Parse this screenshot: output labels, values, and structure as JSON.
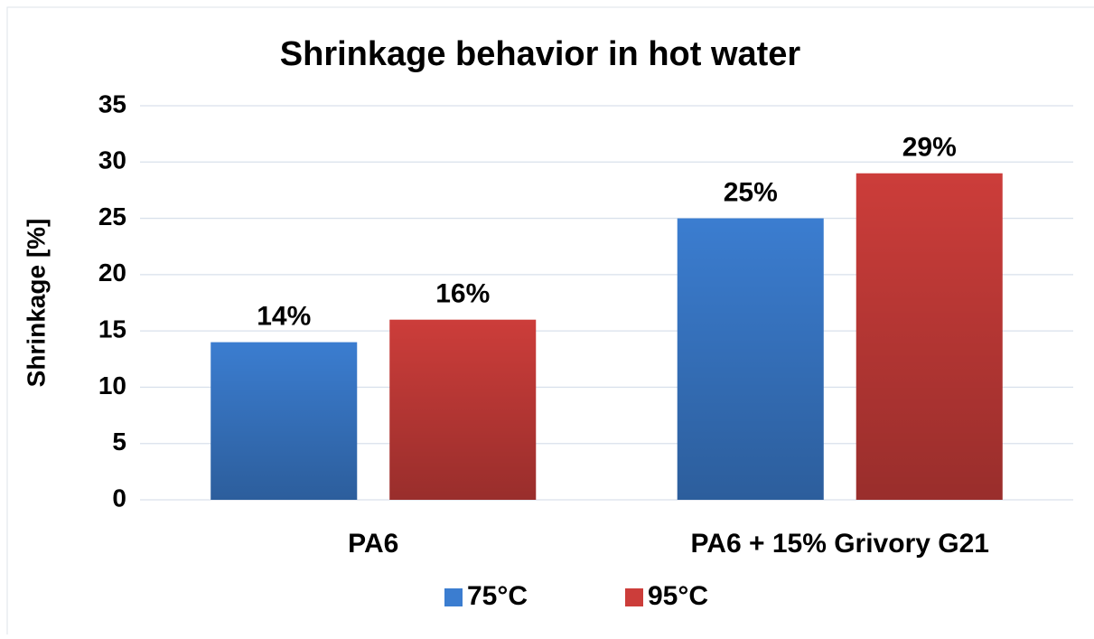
{
  "chart_data": {
    "type": "bar",
    "title": "Shrinkage behavior in hot water",
    "ylabel": "Shrinkage [%]",
    "categories": [
      "PA6",
      "PA6 + 15% Grivory G21"
    ],
    "series": [
      {
        "name": "75°C",
        "color": "#3b7dd0",
        "values": [
          14,
          25
        ],
        "value_labels": [
          "14%",
          "25%"
        ]
      },
      {
        "name": "95°C",
        "color": "#cc3d3a",
        "values": [
          16,
          29
        ],
        "value_labels": [
          "16%",
          "29%"
        ]
      }
    ],
    "ylim": [
      0,
      35
    ],
    "yticks": [
      0,
      5,
      10,
      15,
      20,
      25,
      30,
      35
    ],
    "grid": true,
    "legend": "bottom"
  }
}
